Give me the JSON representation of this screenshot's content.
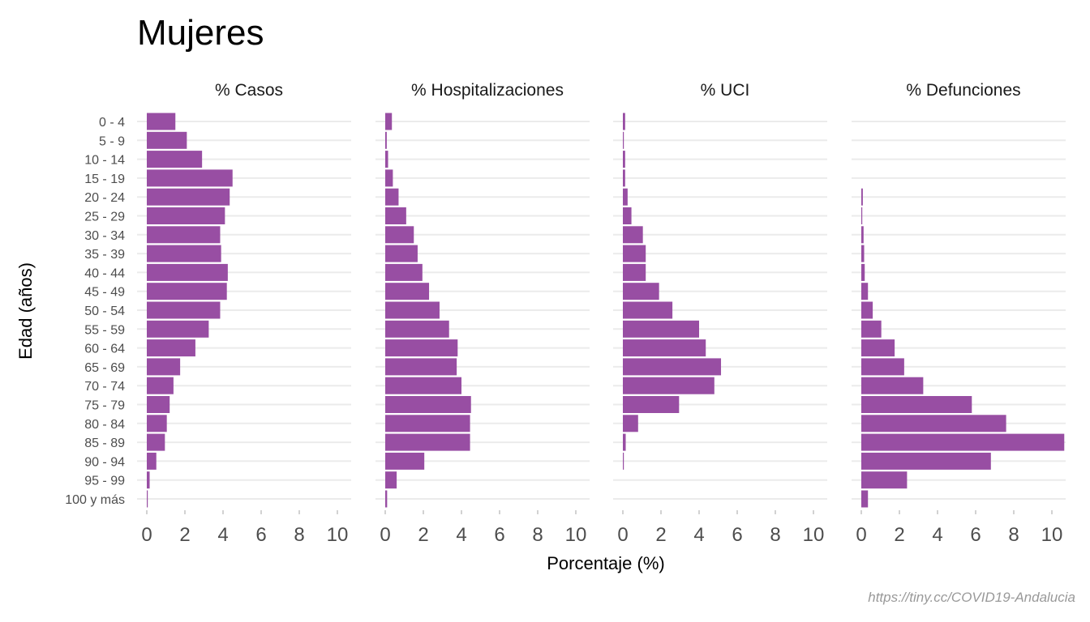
{
  "chart_data": {
    "type": "bar",
    "orientation": "horizontal",
    "title": "Mujeres",
    "xlabel": "Porcentaje (%)",
    "ylabel": "Edad (años)",
    "caption": "https://tiny.cc/COVID19-Andalucia",
    "xlim": [
      0,
      10.8
    ],
    "x_ticks": [
      "0",
      "2",
      "4",
      "6",
      "8",
      "10"
    ],
    "bar_color": "#984ea3",
    "grid": true,
    "legend": "none",
    "categories": [
      "0 - 4",
      "5 - 9",
      "10 - 14",
      "15 - 19",
      "20 - 24",
      "25 - 29",
      "30 - 34",
      "35 - 39",
      "40 - 44",
      "45 - 49",
      "50 - 54",
      "55 - 59",
      "60 - 64",
      "65 - 69",
      "70 - 74",
      "75 - 79",
      "80 - 84",
      "85 - 89",
      "90 - 94",
      "95 - 99",
      "100 y más"
    ],
    "facets": [
      {
        "name": "% Casos",
        "values": [
          1.5,
          2.1,
          2.9,
          4.5,
          4.35,
          4.1,
          3.85,
          3.9,
          4.25,
          4.2,
          3.85,
          3.25,
          2.55,
          1.75,
          1.4,
          1.2,
          1.05,
          0.95,
          0.5,
          0.15,
          0.02
        ]
      },
      {
        "name": "% Hospitalizaciones",
        "values": [
          0.35,
          0.08,
          0.15,
          0.4,
          0.7,
          1.1,
          1.5,
          1.7,
          1.95,
          2.3,
          2.85,
          3.35,
          3.8,
          3.75,
          4.0,
          4.5,
          4.45,
          4.45,
          2.05,
          0.6,
          0.1
        ]
      },
      {
        "name": "% UCI",
        "values": [
          0.12,
          0.03,
          0.12,
          0.12,
          0.25,
          0.45,
          1.05,
          1.2,
          1.2,
          1.9,
          2.6,
          4.0,
          4.35,
          5.15,
          4.8,
          2.95,
          0.8,
          0.15,
          0.03,
          0.0,
          0.0
        ]
      },
      {
        "name": "% Defunciones",
        "values": [
          0.0,
          0.0,
          0.0,
          0.0,
          0.08,
          0.05,
          0.12,
          0.15,
          0.18,
          0.35,
          0.6,
          1.05,
          1.75,
          2.25,
          3.25,
          5.8,
          7.6,
          10.65,
          6.8,
          2.4,
          0.35
        ]
      }
    ]
  }
}
